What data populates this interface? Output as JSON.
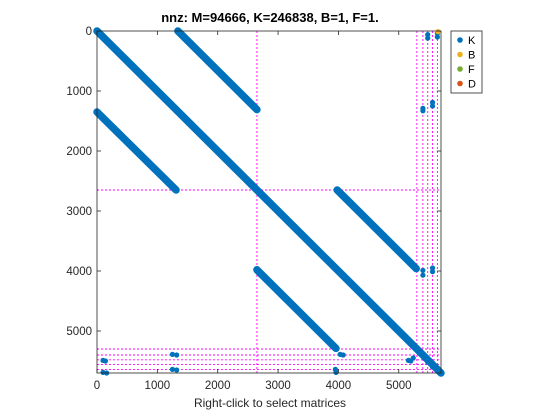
{
  "chart_data": {
    "type": "scatter",
    "title": "nnz: M=94666, K=246838, B=1, F=1.",
    "xlabel": "Right-click to select matrices",
    "ylabel": "",
    "xlim": [
      0,
      5700
    ],
    "ylim": [
      5700,
      0
    ],
    "y_reversed": true,
    "xticks": [
      0,
      1000,
      2000,
      3000,
      4000,
      5000
    ],
    "yticks": [
      0,
      1000,
      2000,
      3000,
      4000,
      5000
    ],
    "grid": false,
    "legend_position": "top-right",
    "partition_lines": {
      "color": "#ff00ff",
      "positions": [
        2650,
        5300,
        5400,
        5480,
        5560,
        5640
      ]
    },
    "series": [
      {
        "name": "K",
        "color": "#0072bd",
        "segments": [
          [
            [
              0,
              0
            ],
            [
              5700,
              5700
            ]
          ],
          [
            [
              1340,
              0
            ],
            [
              2650,
              1310
            ]
          ],
          [
            [
              0,
              1350
            ],
            [
              1310,
              2650
            ]
          ],
          [
            [
              3980,
              2650
            ],
            [
              5290,
              3960
            ]
          ],
          [
            [
              2650,
              3980
            ],
            [
              3960,
              5290
            ]
          ]
        ],
        "points": [
          [
            5480,
            60
          ],
          [
            5480,
            120
          ],
          [
            5640,
            40
          ],
          [
            5640,
            100
          ],
          [
            5400,
            1290
          ],
          [
            5400,
            1330
          ],
          [
            5560,
            1190
          ],
          [
            5560,
            1250
          ],
          [
            5400,
            3990
          ],
          [
            5400,
            4070
          ],
          [
            5560,
            3950
          ],
          [
            5560,
            4010
          ],
          [
            100,
            5490
          ],
          [
            140,
            5500
          ],
          [
            100,
            5690
          ],
          [
            160,
            5700
          ],
          [
            1250,
            5390
          ],
          [
            1320,
            5400
          ],
          [
            1250,
            5640
          ],
          [
            1320,
            5650
          ],
          [
            3950,
            5640
          ],
          [
            3960,
            5690
          ],
          [
            4030,
            5390
          ],
          [
            4080,
            5400
          ],
          [
            5160,
            5490
          ],
          [
            5200,
            5500
          ],
          [
            5240,
            5450
          ],
          [
            5480,
            5520
          ],
          [
            5560,
            5600
          ],
          [
            5640,
            5660
          ]
        ]
      },
      {
        "name": "B",
        "color": "#edb120",
        "points": [
          [
            5650,
            10
          ]
        ]
      },
      {
        "name": "F",
        "color": "#77ac30",
        "points": []
      },
      {
        "name": "D",
        "color": "#d95319",
        "points": []
      }
    ]
  }
}
